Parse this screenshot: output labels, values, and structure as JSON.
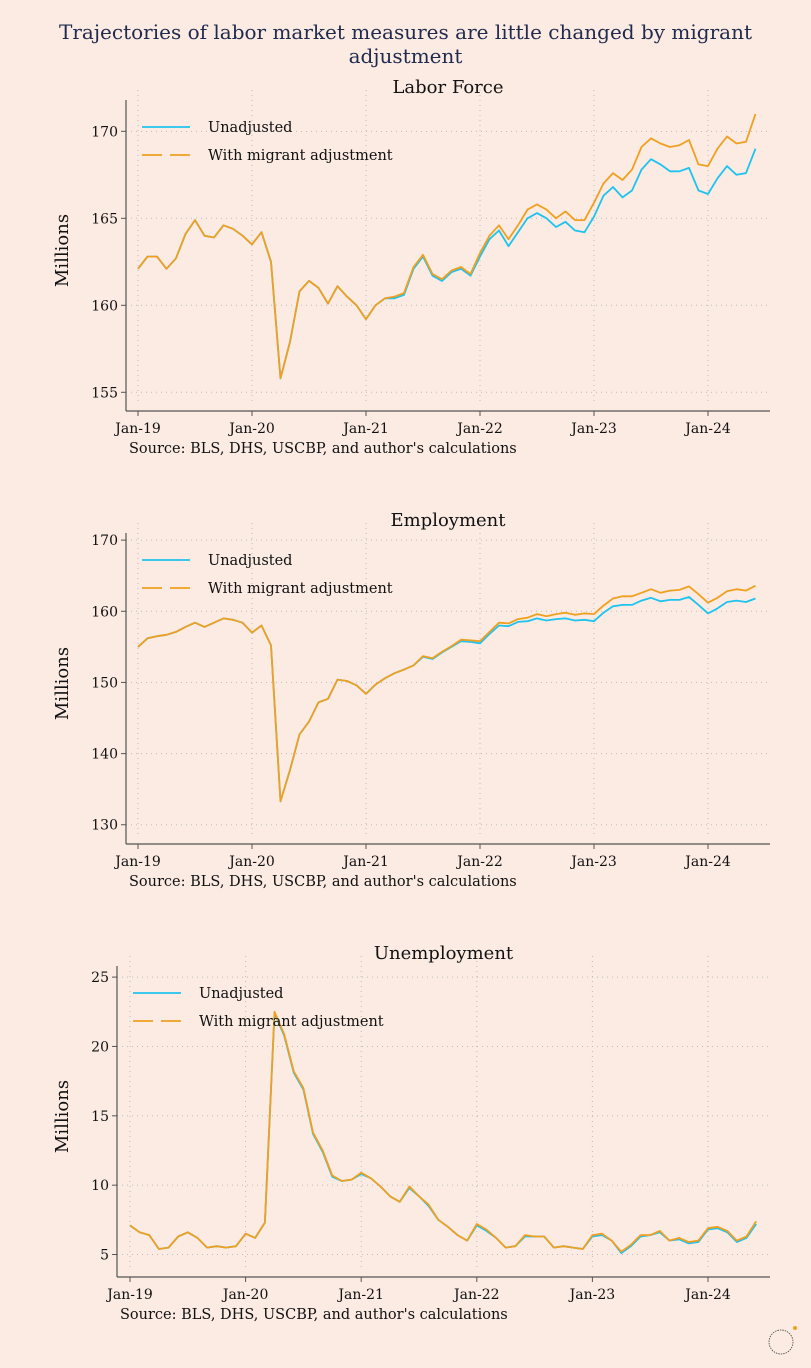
{
  "title": "Trajectories of labor market measures are little changed by migrant adjustment",
  "colors": {
    "background": "#fbebe3",
    "unadjusted": "#1ec3ee",
    "adjusted": "#f0a021",
    "axis": "#555555",
    "grid": "#bbbbbb"
  },
  "logo_icon": "circle-logo-icon",
  "chart_data": [
    {
      "type": "line",
      "title": "Labor Force",
      "ylabel": "Millions",
      "source": "Source: BLS, DHS, USCBP, and author's calculations",
      "ylim": [
        154.5,
        171.8
      ],
      "yticks": [
        155,
        160,
        165,
        170
      ],
      "xticks": [
        {
          "label": "Jan-19",
          "month": 0
        },
        {
          "label": "Jan-20",
          "month": 12
        },
        {
          "label": "Jan-21",
          "month": 24
        },
        {
          "label": "Jan-22",
          "month": 36
        },
        {
          "label": "Jan-23",
          "month": 48
        },
        {
          "label": "Jan-24",
          "month": 60
        }
      ],
      "grid": true,
      "legend": "top-left",
      "series": [
        {
          "name": "Unadjusted",
          "values": [
            162.1,
            162.8,
            162.8,
            162.1,
            162.7,
            164.1,
            164.9,
            164.0,
            163.9,
            164.6,
            164.4,
            164.0,
            163.5,
            164.2,
            162.5,
            155.8,
            157.9,
            160.8,
            161.4,
            161.0,
            160.1,
            161.1,
            160.5,
            160.0,
            159.2,
            160.0,
            160.4,
            160.4,
            160.6,
            162.1,
            162.8,
            161.7,
            161.4,
            161.9,
            162.1,
            161.7,
            162.8,
            163.8,
            164.3,
            163.4,
            164.2,
            165.0,
            165.3,
            165.0,
            164.5,
            164.8,
            164.3,
            164.2,
            165.1,
            166.3,
            166.8,
            166.2,
            166.6,
            167.8,
            168.4,
            168.1,
            167.7,
            167.7,
            167.9,
            166.6,
            166.4,
            167.3,
            168.0,
            167.5,
            167.6,
            169.0
          ]
        },
        {
          "name": "With migrant adjustment",
          "values": [
            162.1,
            162.8,
            162.8,
            162.1,
            162.7,
            164.1,
            164.9,
            164.0,
            163.9,
            164.6,
            164.4,
            164.0,
            163.5,
            164.2,
            162.5,
            155.8,
            157.9,
            160.8,
            161.4,
            161.0,
            160.1,
            161.1,
            160.5,
            160.0,
            159.2,
            160.0,
            160.4,
            160.5,
            160.7,
            162.2,
            162.9,
            161.8,
            161.5,
            162.0,
            162.2,
            161.8,
            163.0,
            164.0,
            164.6,
            163.8,
            164.6,
            165.5,
            165.8,
            165.5,
            165.0,
            165.4,
            164.9,
            164.9,
            165.9,
            167.0,
            167.6,
            167.2,
            167.8,
            169.1,
            169.6,
            169.3,
            169.1,
            169.2,
            169.5,
            168.1,
            168.0,
            169.0,
            169.7,
            169.3,
            169.4,
            171.0
          ]
        }
      ]
    },
    {
      "type": "line",
      "title": "Employment",
      "ylabel": "Millions",
      "source": "Source: BLS, DHS, USCBP, and author's calculations",
      "ylim": [
        128.7,
        171.0
      ],
      "yticks": [
        130,
        140,
        150,
        160,
        170
      ],
      "xticks": [
        {
          "label": "Jan-19",
          "month": 0
        },
        {
          "label": "Jan-20",
          "month": 12
        },
        {
          "label": "Jan-21",
          "month": 24
        },
        {
          "label": "Jan-22",
          "month": 36
        },
        {
          "label": "Jan-23",
          "month": 48
        },
        {
          "label": "Jan-24",
          "month": 60
        }
      ],
      "grid": true,
      "legend": "top-left",
      "series": [
        {
          "name": "Unadjusted",
          "values": [
            155.0,
            156.2,
            156.5,
            156.7,
            157.1,
            157.8,
            158.4,
            157.8,
            158.4,
            159.0,
            158.8,
            158.4,
            157.0,
            158.0,
            155.2,
            133.3,
            137.7,
            142.7,
            144.5,
            147.2,
            147.7,
            150.4,
            150.2,
            149.6,
            148.4,
            149.7,
            150.6,
            151.3,
            151.8,
            152.4,
            153.6,
            153.3,
            154.2,
            155.0,
            155.8,
            155.7,
            155.5,
            156.8,
            158.0,
            157.9,
            158.5,
            158.6,
            159.0,
            158.7,
            158.9,
            159.0,
            158.7,
            158.8,
            158.6,
            159.8,
            160.7,
            160.9,
            160.9,
            161.5,
            161.9,
            161.4,
            161.6,
            161.6,
            162.0,
            160.9,
            159.7,
            160.4,
            161.3,
            161.5,
            161.3,
            161.8
          ]
        },
        {
          "name": "With migrant adjustment",
          "values": [
            155.0,
            156.2,
            156.5,
            156.7,
            157.1,
            157.8,
            158.4,
            157.8,
            158.4,
            159.0,
            158.8,
            158.4,
            157.0,
            158.0,
            155.2,
            133.3,
            137.7,
            142.7,
            144.5,
            147.2,
            147.7,
            150.4,
            150.2,
            149.6,
            148.4,
            149.7,
            150.6,
            151.3,
            151.8,
            152.4,
            153.7,
            153.4,
            154.3,
            155.1,
            156.0,
            155.9,
            155.8,
            157.1,
            158.4,
            158.3,
            158.9,
            159.1,
            159.6,
            159.3,
            159.6,
            159.8,
            159.5,
            159.7,
            159.6,
            160.8,
            161.8,
            162.1,
            162.1,
            162.6,
            163.1,
            162.6,
            162.9,
            163.0,
            163.5,
            162.4,
            161.2,
            161.9,
            162.8,
            163.1,
            162.9,
            163.6
          ]
        }
      ]
    },
    {
      "type": "line",
      "title": "Unemployment",
      "ylabel": "Millions",
      "source": "Source: BLS, DHS, USCBP, and author's calculations",
      "ylim": [
        4.1,
        25.8
      ],
      "yticks": [
        5,
        10,
        15,
        20,
        25
      ],
      "xticks": [
        {
          "label": "Jan-19",
          "month": 0
        },
        {
          "label": "Jan-20",
          "month": 12
        },
        {
          "label": "Jan-21",
          "month": 24
        },
        {
          "label": "Jan-22",
          "month": 36
        },
        {
          "label": "Jan-23",
          "month": 48
        },
        {
          "label": "Jan-24",
          "month": 60
        }
      ],
      "grid": true,
      "legend": "top-left",
      "series": [
        {
          "name": "Unadjusted",
          "values": [
            7.1,
            6.6,
            6.4,
            5.4,
            5.5,
            6.3,
            6.6,
            6.2,
            5.5,
            5.6,
            5.5,
            5.6,
            6.5,
            6.2,
            7.3,
            22.4,
            20.8,
            18.1,
            16.9,
            13.7,
            12.4,
            10.6,
            10.3,
            10.4,
            10.8,
            10.5,
            9.9,
            9.2,
            8.8,
            9.8,
            9.2,
            8.5,
            7.5,
            7.0,
            6.4,
            6.0,
            7.1,
            6.7,
            6.2,
            5.5,
            5.6,
            6.3,
            6.3,
            6.3,
            5.5,
            5.6,
            5.5,
            5.4,
            6.3,
            6.4,
            6.0,
            5.1,
            5.6,
            6.3,
            6.4,
            6.6,
            6.0,
            6.1,
            5.8,
            5.9,
            6.8,
            6.9,
            6.6,
            5.9,
            6.2,
            7.2
          ]
        },
        {
          "name": "With migrant adjustment",
          "values": [
            7.1,
            6.6,
            6.4,
            5.4,
            5.5,
            6.3,
            6.6,
            6.2,
            5.5,
            5.6,
            5.5,
            5.6,
            6.5,
            6.2,
            7.3,
            22.5,
            20.9,
            18.2,
            17.0,
            13.8,
            12.5,
            10.7,
            10.3,
            10.4,
            10.9,
            10.5,
            9.9,
            9.2,
            8.8,
            9.9,
            9.2,
            8.6,
            7.5,
            7.0,
            6.4,
            6.0,
            7.2,
            6.8,
            6.2,
            5.5,
            5.6,
            6.4,
            6.3,
            6.3,
            5.5,
            5.6,
            5.5,
            5.4,
            6.4,
            6.5,
            6.0,
            5.2,
            5.7,
            6.4,
            6.4,
            6.7,
            6.0,
            6.2,
            5.9,
            6.0,
            6.9,
            7.0,
            6.7,
            6.0,
            6.3,
            7.4
          ]
        }
      ]
    }
  ]
}
